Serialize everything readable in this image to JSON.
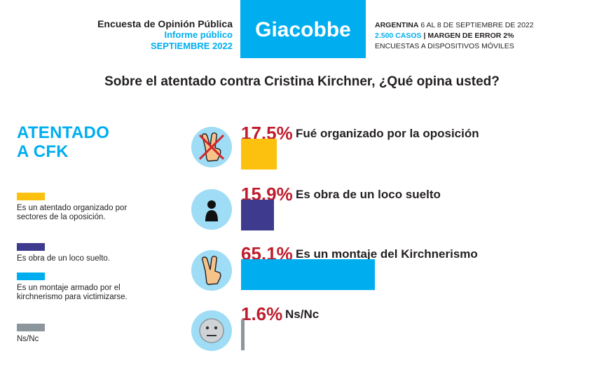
{
  "header": {
    "survey_title": "Encuesta de Opinión Pública",
    "report_type": "Informe público",
    "month": "SEPTIEMBRE 2022",
    "brand": "Giacobbe",
    "country": "ARGENTINA",
    "dates": "6 AL 8 DE SEPTIEMBRE DE 2022",
    "cases": "2.500 CASOS",
    "separator": "|",
    "margin": "MARGEN DE ERROR 2%",
    "method": "ENCUESTAS A DISPOSITIVOS MÓVILES"
  },
  "question": "Sobre el atentado contra Cristina Kirchner, ¿Qué opina usted?",
  "section": {
    "line1": "ATENTADO",
    "line2": "A CFK"
  },
  "legend": [
    {
      "label": "Es un atentado organizado por sectores de la oposición.",
      "color": "#fcc10f"
    },
    {
      "label": "Es obra de un loco suelto.",
      "color": "#3e3a8e"
    },
    {
      "label": "Es un montaje armado por el kirchnerismo para victimizarse.",
      "color": "#00aeef"
    },
    {
      "label": "Ns/Nc",
      "color": "#8c969d"
    }
  ],
  "chart_data": {
    "type": "bar",
    "orientation": "horizontal",
    "categories": [
      "Fué organizado por la oposición",
      "Es obra de un loco suelto",
      "Es un montaje del Kirchnerismo",
      "Ns/Nc"
    ],
    "values": [
      17.5,
      15.9,
      65.1,
      1.6
    ],
    "value_labels": [
      "17.5%",
      "15.9%",
      "65.1%",
      "1.6%"
    ],
    "colors": [
      "#fcc10f",
      "#3e3a8e",
      "#00aeef",
      "#8c969d"
    ],
    "icons": [
      "crossed-victory-hand-icon",
      "person-silhouette-icon",
      "victory-hand-icon",
      "neutral-face-icon"
    ],
    "title": "Sobre el atentado contra Cristina Kirchner, ¿Qué opina usted?",
    "xlim": [
      0,
      100
    ],
    "grid": false,
    "legend_position": "left"
  }
}
